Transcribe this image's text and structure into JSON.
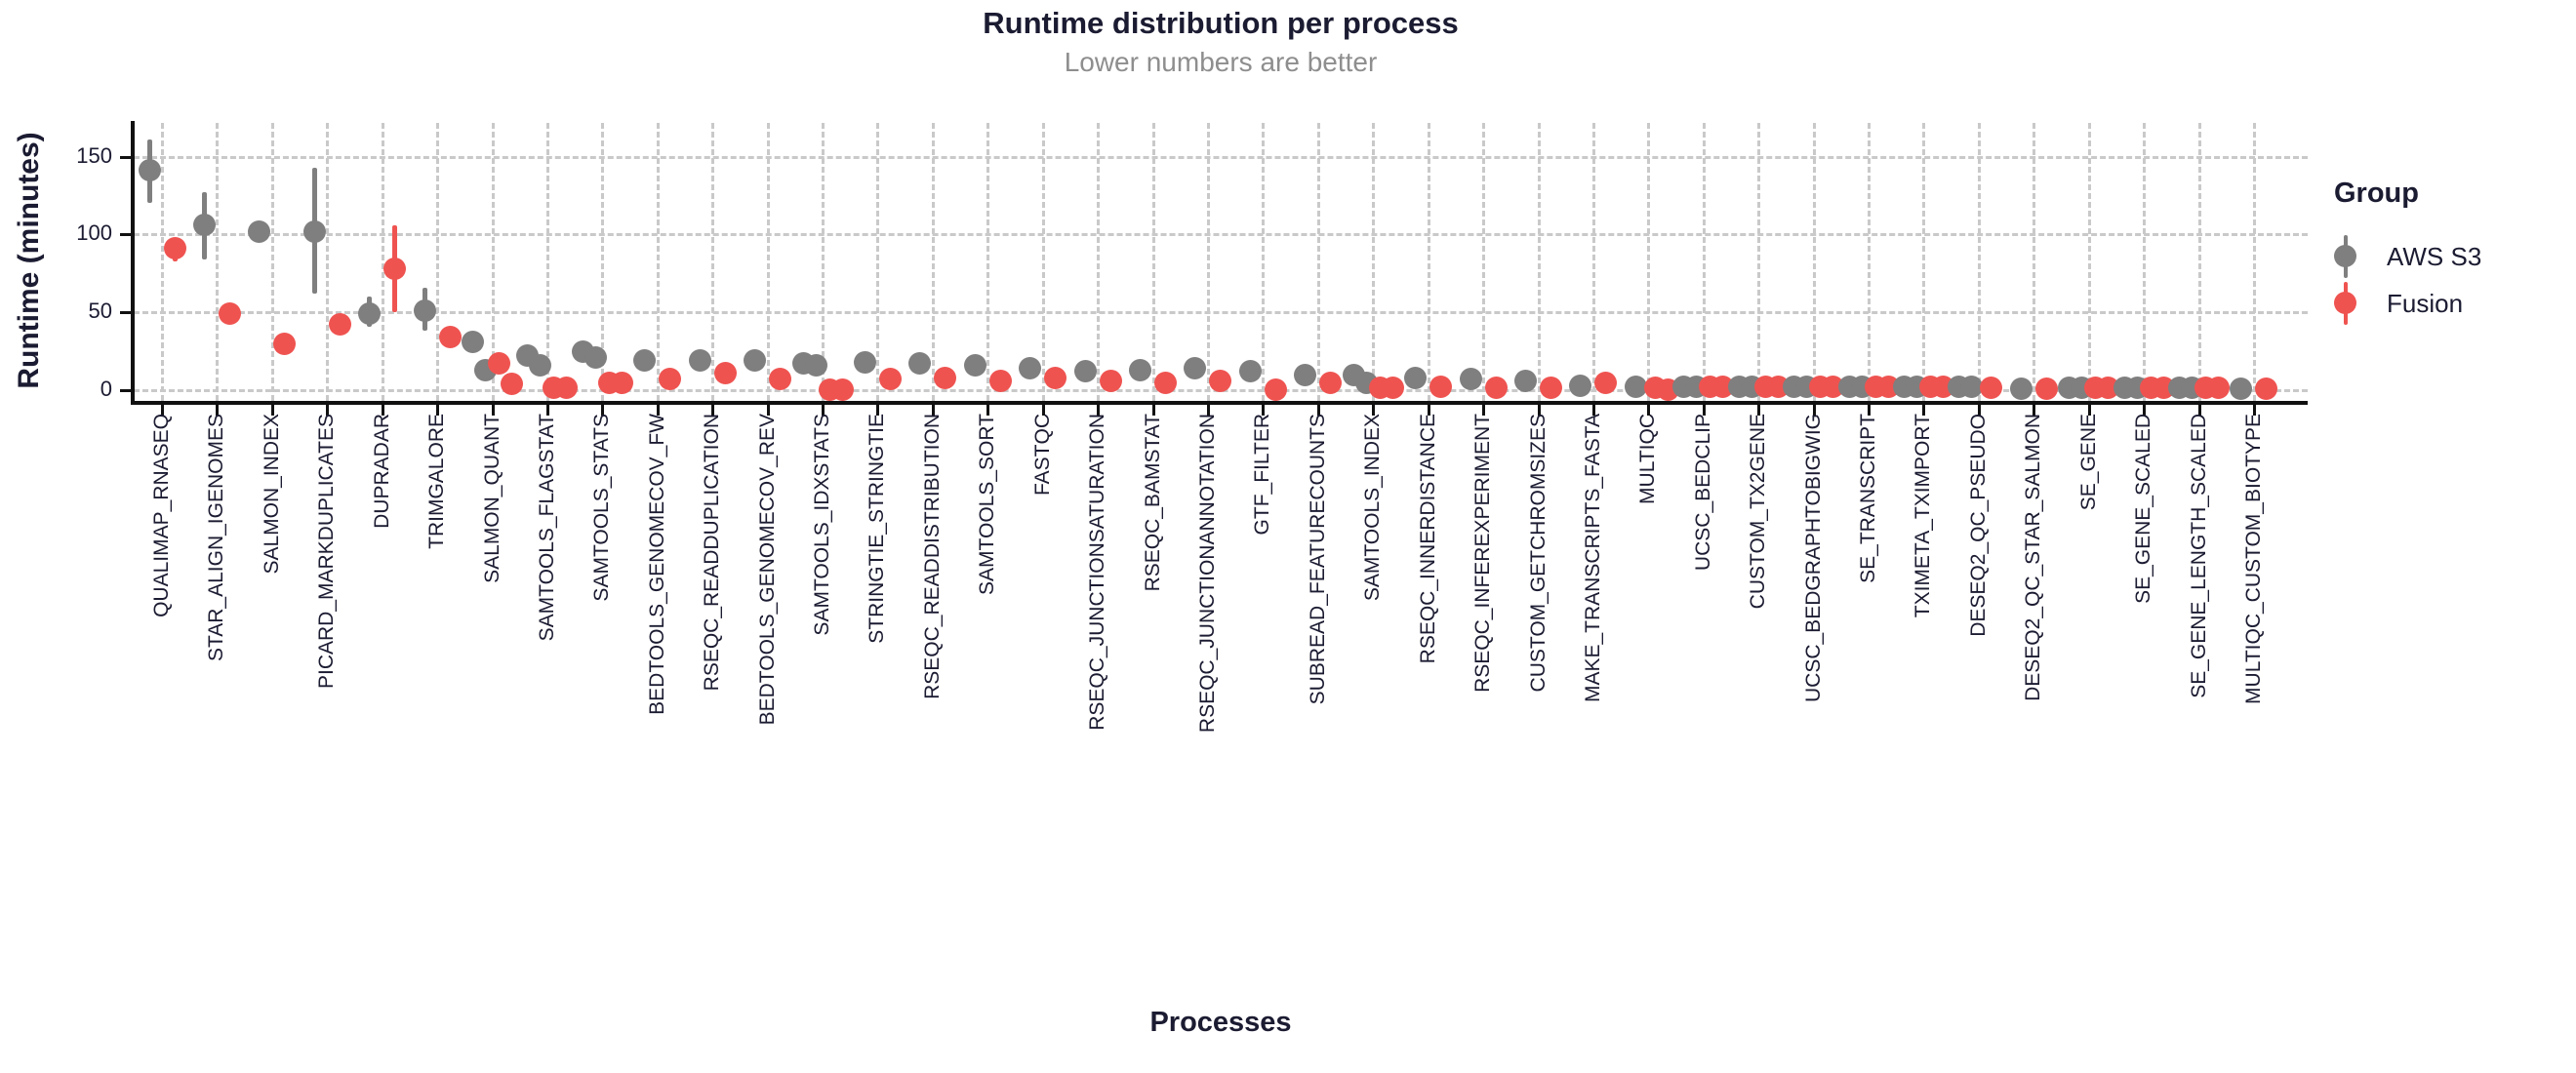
{
  "header": {
    "title": "Runtime distribution per process",
    "subtitle": "Lower numbers are better"
  },
  "colors": {
    "aws_s3": "#7f7f7f",
    "fusion": "#ef5350",
    "text_dark": "#1b1b32",
    "subtitle_gray": "#8e8e8e",
    "grid_gray": "#c9c9c9",
    "axis_black": "#111111"
  },
  "legend": {
    "title": "Group",
    "position": "right",
    "entries": [
      {
        "label": "AWS S3",
        "color": "#7f7f7f"
      },
      {
        "label": "Fusion",
        "color": "#ef5350"
      }
    ]
  },
  "chart_data": {
    "type": "scatter",
    "subtype": "pointrange-dodged",
    "title": "Runtime distribution per process",
    "subtitle": "Lower numbers are better",
    "xlabel": "Processes",
    "ylabel": "Runtime (minutes)",
    "ylim": [
      0,
      170
    ],
    "yticks": [
      0,
      50,
      100,
      150
    ],
    "grid": "dashed-both",
    "legend_position": "right",
    "series_names": [
      "AWS S3",
      "Fusion"
    ],
    "categories": [
      "QUALIMAP_RNASEQ",
      "STAR_ALIGN_IGENOMES",
      "SALMON_INDEX",
      "PICARD_MARKDUPLICATES",
      "DUPRADAR",
      "TRIMGALORE",
      "SALMON_QUANT",
      "SAMTOOLS_FLAGSTAT",
      "SAMTOOLS_STATS",
      "BEDTOOLS_GENOMECOV_FW",
      "RSEQC_READDUPLICATION",
      "BEDTOOLS_GENOMECOV_REV",
      "SAMTOOLS_IDXSTATS",
      "STRINGTIE_STRINGTIE",
      "RSEQC_READDISTRIBUTION",
      "SAMTOOLS_SORT",
      "FASTQC",
      "RSEQC_JUNCTIONSATURATION",
      "RSEQC_BAMSTAT",
      "RSEQC_JUNCTIONANNOTATION",
      "GTF_FILTER",
      "SUBREAD_FEATURECOUNTS",
      "SAMTOOLS_INDEX",
      "RSEQC_INNERDISTANCE",
      "RSEQC_INFEREXPERIMENT",
      "CUSTOM_GETCHROMSIZES",
      "MAKE_TRANSCRIPTS_FASTA",
      "MULTIQC",
      "UCSC_BEDCLIP",
      "CUSTOM_TX2GENE",
      "UCSC_BEDGRAPHTOBIGWIG",
      "SE_TRANSCRIPT",
      "TXIMETA_TXIMPORT",
      "DESEQ2_QC_PSEUDO",
      "DESEQ2_QC_STAR_SALMON",
      "SE_GENE",
      "SE_GENE_SCALED",
      "SE_GENE_LENGTH_SCALED",
      "MULTIQC_CUSTOM_BIOTYPE"
    ],
    "points": [
      {
        "name": "QUALIMAP_RNASEQ",
        "aws": {
          "values": [
            141
          ],
          "ci": [
            120,
            161
          ]
        },
        "fusion": {
          "values": [
            91
          ],
          "ci": [
            83,
            97
          ]
        }
      },
      {
        "name": "STAR_ALIGN_IGENOMES",
        "aws": {
          "values": [
            106
          ],
          "ci": [
            84,
            127
          ]
        },
        "fusion": {
          "values": [
            49
          ],
          "ci": null
        }
      },
      {
        "name": "SALMON_INDEX",
        "aws": {
          "values": [
            102
          ],
          "ci": null
        },
        "fusion": {
          "values": [
            30
          ],
          "ci": null
        }
      },
      {
        "name": "PICARD_MARKDUPLICATES",
        "aws": {
          "values": [
            102
          ],
          "ci": [
            62,
            143
          ]
        },
        "fusion": {
          "values": [
            42
          ],
          "ci": null
        }
      },
      {
        "name": "DUPRADAR",
        "aws": {
          "values": [
            49
          ],
          "ci": [
            41,
            60
          ]
        },
        "fusion": {
          "values": [
            78
          ],
          "ci": [
            50,
            106
          ]
        }
      },
      {
        "name": "TRIMGALORE",
        "aws": {
          "values": [
            51
          ],
          "ci": [
            38,
            66
          ]
        },
        "fusion": {
          "values": [
            34
          ],
          "ci": null
        }
      },
      {
        "name": "SALMON_QUANT",
        "aws": {
          "values": [
            31,
            13
          ],
          "ci": null
        },
        "fusion": {
          "values": [
            17,
            4
          ],
          "ci": null
        }
      },
      {
        "name": "SAMTOOLS_FLAGSTAT",
        "aws": {
          "values": [
            22,
            16
          ],
          "ci": null
        },
        "fusion": {
          "values": [
            1.5,
            1.5
          ],
          "ci": null
        }
      },
      {
        "name": "SAMTOOLS_STATS",
        "aws": {
          "values": [
            25,
            21
          ],
          "ci": null
        },
        "fusion": {
          "values": [
            5,
            5
          ],
          "ci": null
        }
      },
      {
        "name": "BEDTOOLS_GENOMECOV_FW",
        "aws": {
          "values": [
            19
          ],
          "ci": null
        },
        "fusion": {
          "values": [
            7.5
          ],
          "ci": null
        }
      },
      {
        "name": "RSEQC_READDUPLICATION",
        "aws": {
          "values": [
            19
          ],
          "ci": null
        },
        "fusion": {
          "values": [
            11
          ],
          "ci": null
        }
      },
      {
        "name": "BEDTOOLS_GENOMECOV_REV",
        "aws": {
          "values": [
            19
          ],
          "ci": null
        },
        "fusion": {
          "values": [
            7
          ],
          "ci": null
        }
      },
      {
        "name": "SAMTOOLS_IDXSTATS",
        "aws": {
          "values": [
            17,
            16
          ],
          "ci": null
        },
        "fusion": {
          "values": [
            0.5,
            0.5
          ],
          "ci": null
        }
      },
      {
        "name": "STRINGTIE_STRINGTIE",
        "aws": {
          "values": [
            18
          ],
          "ci": null
        },
        "fusion": {
          "values": [
            7
          ],
          "ci": null
        }
      },
      {
        "name": "RSEQC_READDISTRIBUTION",
        "aws": {
          "values": [
            17
          ],
          "ci": null
        },
        "fusion": {
          "values": [
            8
          ],
          "ci": null
        }
      },
      {
        "name": "SAMTOOLS_SORT",
        "aws": {
          "values": [
            16
          ],
          "ci": [
            12,
            20
          ]
        },
        "fusion": {
          "values": [
            6
          ],
          "ci": null
        }
      },
      {
        "name": "FASTQC",
        "aws": {
          "values": [
            14
          ],
          "ci": null
        },
        "fusion": {
          "values": [
            8
          ],
          "ci": null
        }
      },
      {
        "name": "RSEQC_JUNCTIONSATURATION",
        "aws": {
          "values": [
            12
          ],
          "ci": null
        },
        "fusion": {
          "values": [
            6
          ],
          "ci": null
        }
      },
      {
        "name": "RSEQC_BAMSTAT",
        "aws": {
          "values": [
            13
          ],
          "ci": null
        },
        "fusion": {
          "values": [
            5
          ],
          "ci": null
        }
      },
      {
        "name": "RSEQC_JUNCTIONANNOTATION",
        "aws": {
          "values": [
            14
          ],
          "ci": null
        },
        "fusion": {
          "values": [
            6
          ],
          "ci": null
        }
      },
      {
        "name": "GTF_FILTER",
        "aws": {
          "values": [
            12
          ],
          "ci": null
        },
        "fusion": {
          "values": [
            0.5
          ],
          "ci": null
        }
      },
      {
        "name": "SUBREAD_FEATURECOUNTS",
        "aws": {
          "values": [
            10
          ],
          "ci": null
        },
        "fusion": {
          "values": [
            5
          ],
          "ci": null
        }
      },
      {
        "name": "SAMTOOLS_INDEX",
        "aws": {
          "values": [
            10,
            5
          ],
          "ci": null
        },
        "fusion": {
          "values": [
            1.3,
            1.3
          ],
          "ci": null
        }
      },
      {
        "name": "RSEQC_INNERDISTANCE",
        "aws": {
          "values": [
            8
          ],
          "ci": null
        },
        "fusion": {
          "values": [
            2
          ],
          "ci": null
        }
      },
      {
        "name": "RSEQC_INFEREXPERIMENT",
        "aws": {
          "values": [
            7
          ],
          "ci": null
        },
        "fusion": {
          "values": [
            1.5
          ],
          "ci": null
        }
      },
      {
        "name": "CUSTOM_GETCHROMSIZES",
        "aws": {
          "values": [
            6
          ],
          "ci": null
        },
        "fusion": {
          "values": [
            1.5
          ],
          "ci": null
        }
      },
      {
        "name": "MAKE_TRANSCRIPTS_FASTA",
        "aws": {
          "values": [
            3
          ],
          "ci": null
        },
        "fusion": {
          "values": [
            5
          ],
          "ci": null
        }
      },
      {
        "name": "MULTIQC",
        "aws": {
          "values": [
            2.5
          ],
          "ci": null
        },
        "fusion": {
          "values": [
            1.5,
            0.5
          ],
          "ci": null
        }
      },
      {
        "name": "UCSC_BEDCLIP",
        "aws": {
          "values": [
            2,
            2
          ],
          "ci": null
        },
        "fusion": {
          "values": [
            2.5,
            2.5
          ],
          "ci": null
        }
      },
      {
        "name": "CUSTOM_TX2GENE",
        "aws": {
          "values": [
            2,
            2
          ],
          "ci": null
        },
        "fusion": {
          "values": [
            2,
            2
          ],
          "ci": null
        }
      },
      {
        "name": "UCSC_BEDGRAPHTOBIGWIG",
        "aws": {
          "values": [
            2,
            2
          ],
          "ci": null
        },
        "fusion": {
          "values": [
            2,
            2
          ],
          "ci": null
        }
      },
      {
        "name": "SE_TRANSCRIPT",
        "aws": {
          "values": [
            2,
            2
          ],
          "ci": null
        },
        "fusion": {
          "values": [
            2.5,
            2.5
          ],
          "ci": null
        }
      },
      {
        "name": "TXIMETA_TXIMPORT",
        "aws": {
          "values": [
            2,
            2
          ],
          "ci": null
        },
        "fusion": {
          "values": [
            2,
            2
          ],
          "ci": null
        }
      },
      {
        "name": "DESEQ2_QC_PSEUDO",
        "aws": {
          "values": [
            2,
            2
          ],
          "ci": null
        },
        "fusion": {
          "values": [
            1.5
          ],
          "ci": null
        }
      },
      {
        "name": "DESEQ2_QC_STAR_SALMON",
        "aws": {
          "values": [
            1
          ],
          "ci": null
        },
        "fusion": {
          "values": [
            1
          ],
          "ci": null
        }
      },
      {
        "name": "SE_GENE",
        "aws": {
          "values": [
            1.5,
            1.5
          ],
          "ci": null
        },
        "fusion": {
          "values": [
            1.5,
            1.5
          ],
          "ci": null
        }
      },
      {
        "name": "SE_GENE_SCALED",
        "aws": {
          "values": [
            1.5,
            1.5
          ],
          "ci": null
        },
        "fusion": {
          "values": [
            1.5,
            1.5
          ],
          "ci": null
        }
      },
      {
        "name": "SE_GENE_LENGTH_SCALED",
        "aws": {
          "values": [
            1.5,
            1.5
          ],
          "ci": null
        },
        "fusion": {
          "values": [
            1.5,
            1.5
          ],
          "ci": null
        }
      },
      {
        "name": "MULTIQC_CUSTOM_BIOTYPE",
        "aws": {
          "values": [
            1
          ],
          "ci": null
        },
        "fusion": {
          "values": [
            1
          ],
          "ci": null
        }
      }
    ]
  }
}
